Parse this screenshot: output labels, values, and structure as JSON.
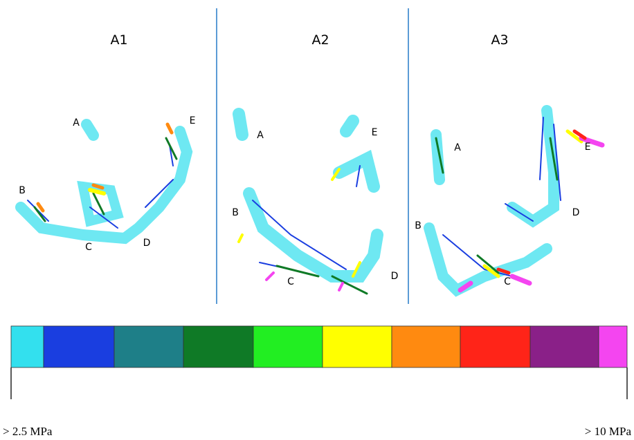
{
  "panels": [
    {
      "title": "A1",
      "points": [
        "A",
        "B",
        "C",
        "D",
        "E"
      ]
    },
    {
      "title": "A2",
      "points": [
        "A",
        "B",
        "C",
        "D",
        "E"
      ]
    },
    {
      "title": "A3",
      "points": [
        "A",
        "B",
        "C",
        "D",
        "E"
      ]
    }
  ],
  "legend": {
    "colors": [
      "#33e0ee",
      "#1a3ee0",
      "#1e7f88",
      "#0f7a26",
      "#22ee22",
      "#ffff00",
      "#ff8a10",
      "#ff2418",
      "#8a2088",
      "#f445f0"
    ],
    "min_label": "> 2.5 MPa",
    "max_label": "> 10 MPa"
  }
}
